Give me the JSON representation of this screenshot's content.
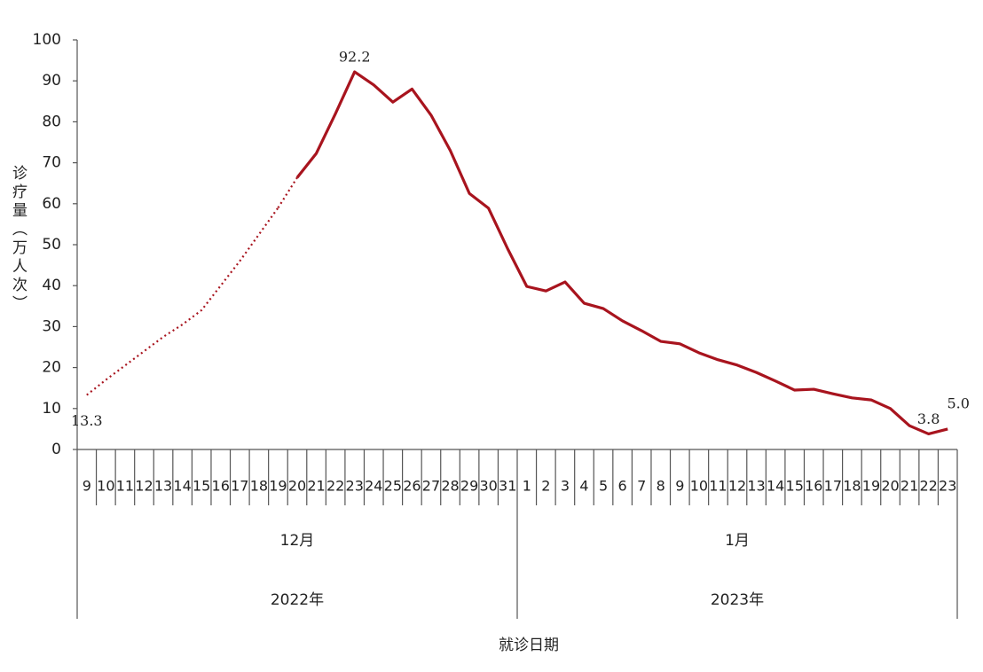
{
  "chart_data": {
    "type": "line",
    "y_label": "诊疗量（万人次）",
    "x_label": "就诊日期",
    "categories": [
      "9",
      "10",
      "11",
      "12",
      "13",
      "14",
      "15",
      "16",
      "17",
      "18",
      "19",
      "20",
      "21",
      "22",
      "23",
      "24",
      "25",
      "26",
      "27",
      "28",
      "29",
      "30",
      "31",
      "1",
      "2",
      "3",
      "4",
      "5",
      "6",
      "7",
      "8",
      "9",
      "10",
      "11",
      "12",
      "13",
      "14",
      "15",
      "16",
      "17",
      "18",
      "19",
      "20",
      "21",
      "22",
      "23"
    ],
    "category_groups": [
      {
        "month": "12月",
        "year": "2022年"
      },
      {
        "month": "1月",
        "year": "2023年"
      }
    ],
    "series": [
      {
        "color": "#a8141e",
        "line_style": "dotted",
        "values": [
          13.3,
          17,
          20.5,
          24,
          27.5,
          30.5,
          34,
          40,
          46,
          52.5,
          59,
          null,
          null,
          null,
          null,
          null,
          null,
          null,
          null,
          null,
          null,
          null,
          null,
          null,
          null,
          null,
          null,
          null,
          null,
          null,
          null,
          null,
          null,
          null,
          null,
          null,
          null,
          null,
          null,
          null,
          null,
          null,
          null,
          null,
          null,
          null
        ],
        "value_labels": [
          "13.3",
          null,
          null,
          null,
          null,
          null,
          null,
          null,
          null,
          null,
          null,
          null,
          null,
          null,
          null,
          null,
          null,
          null,
          null,
          null,
          null,
          null,
          null,
          null,
          null,
          null,
          null,
          null,
          null,
          null,
          null,
          null,
          null,
          null,
          null,
          null,
          null,
          null,
          null,
          null,
          null,
          null,
          null,
          null,
          null,
          null
        ]
      },
      {
        "color": "#a8141e",
        "line_style": "solid",
        "values": [
          null,
          null,
          null,
          null,
          null,
          null,
          null,
          null,
          null,
          null,
          null,
          66.4,
          72.3,
          82,
          92.2,
          89,
          84.8,
          88,
          81.6,
          73,
          62.5,
          58.9,
          49,
          39.8,
          38.7,
          40.9,
          35.7,
          34.4,
          31.4,
          29,
          26.4,
          25.8,
          23.6,
          21.9,
          20.6,
          18.8,
          16.7,
          14.5,
          14.7,
          13.6,
          12.6,
          12.1,
          10,
          5.8,
          3.8,
          5.0
        ],
        "value_labels": [
          null,
          null,
          null,
          null,
          null,
          null,
          null,
          null,
          null,
          null,
          null,
          null,
          null,
          null,
          "92.2",
          null,
          null,
          null,
          null,
          null,
          null,
          null,
          null,
          null,
          null,
          null,
          null,
          null,
          null,
          null,
          null,
          null,
          null,
          null,
          null,
          null,
          null,
          null,
          null,
          null,
          null,
          null,
          null,
          null,
          "3.8",
          "5.0"
        ]
      }
    ],
    "ylim": [
      0,
      100
    ],
    "yticks": [
      0,
      10,
      20,
      30,
      40,
      50,
      60,
      70,
      80,
      90,
      100
    ],
    "grid": false
  }
}
